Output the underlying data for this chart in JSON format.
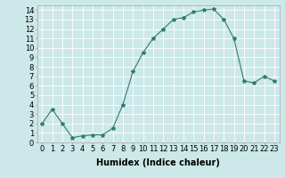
{
  "x": [
    0,
    1,
    2,
    3,
    4,
    5,
    6,
    7,
    8,
    9,
    10,
    11,
    12,
    13,
    14,
    15,
    16,
    17,
    18,
    19,
    20,
    21,
    22,
    23
  ],
  "y": [
    2,
    3.5,
    2,
    0.5,
    0.7,
    0.8,
    0.8,
    1.5,
    4,
    7.5,
    9.5,
    11,
    12,
    13,
    13.2,
    13.8,
    14,
    14.1,
    13,
    11,
    6.5,
    6.3,
    7,
    6.5
  ],
  "line_color": "#2e7d6e",
  "marker": "*",
  "marker_size": 3,
  "bg_color": "#cce8e8",
  "grid_color": "#ffffff",
  "xlabel": "Humidex (Indice chaleur)",
  "xlim": [
    -0.5,
    23.5
  ],
  "ylim": [
    0,
    14.5
  ],
  "xtick_labels": [
    "0",
    "1",
    "2",
    "3",
    "4",
    "5",
    "6",
    "7",
    "8",
    "9",
    "10",
    "11",
    "12",
    "13",
    "14",
    "15",
    "16",
    "17",
    "18",
    "19",
    "20",
    "21",
    "22",
    "23"
  ],
  "ytick_values": [
    0,
    1,
    2,
    3,
    4,
    5,
    6,
    7,
    8,
    9,
    10,
    11,
    12,
    13,
    14
  ],
  "tick_fontsize": 6,
  "xlabel_fontsize": 7
}
